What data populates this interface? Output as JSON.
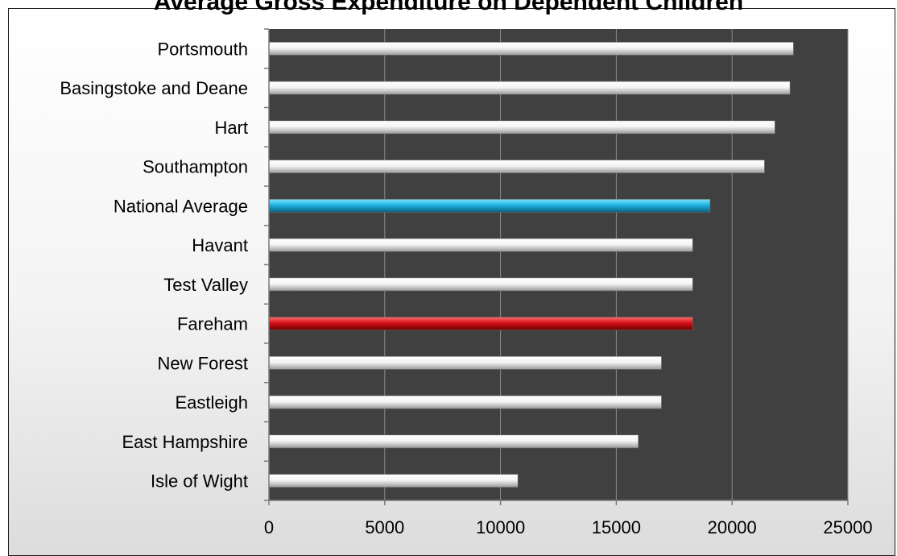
{
  "chart_data": {
    "type": "bar",
    "orientation": "horizontal",
    "title": "Average Gross Expenditure on Dependent Children",
    "categories": [
      "Portsmouth",
      "Basingstoke and Deane",
      "Hart",
      "Southampton",
      "National Average",
      "Havant",
      "Test Valley",
      "Fareham",
      "New Forest",
      "Eastleigh",
      "East Hampshire",
      "Isle of Wight"
    ],
    "values": [
      22650,
      22500,
      21850,
      21400,
      19050,
      18300,
      18300,
      18300,
      16950,
      16950,
      15950,
      10750
    ],
    "bar_colors": [
      "#f2f2f2",
      "#f2f2f2",
      "#f2f2f2",
      "#f2f2f2",
      "#1fb3df",
      "#f2f2f2",
      "#f2f2f2",
      "#d4101a",
      "#f2f2f2",
      "#f2f2f2",
      "#f2f2f2",
      "#f2f2f2"
    ],
    "xlim": [
      0,
      25000
    ],
    "xticks": [
      "0",
      "5000",
      "10000",
      "15000",
      "20000",
      "25000"
    ],
    "xlabel": "",
    "ylabel": "",
    "grid": true,
    "plot_background": "#404040",
    "legend": "none"
  }
}
